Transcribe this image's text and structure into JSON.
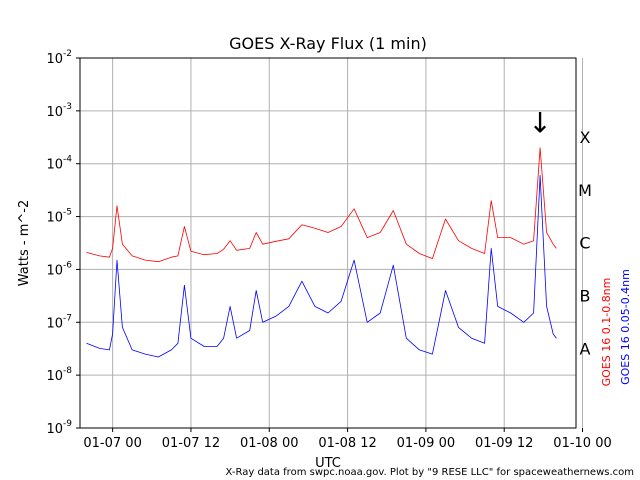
{
  "chart_data": {
    "type": "line",
    "title": "GOES X-Ray Flux (1 min)",
    "xlabel": "UTC",
    "ylabel": "Watts - m^-2",
    "yscale": "log",
    "ylim": [
      1e-09,
      0.01
    ],
    "xlim": [
      "2025-01-06T19:00",
      "2025-01-09T23:00"
    ],
    "grid": true,
    "x_ticks": [
      {
        "label": "01-07 00",
        "t": "2025-01-07T00:00"
      },
      {
        "label": "01-07 12",
        "t": "2025-01-07T12:00"
      },
      {
        "label": "01-08 00",
        "t": "2025-01-08T00:00"
      },
      {
        "label": "01-08 12",
        "t": "2025-01-08T12:00"
      },
      {
        "label": "01-09 00",
        "t": "2025-01-09T00:00"
      },
      {
        "label": "01-09 12",
        "t": "2025-01-09T12:00"
      },
      {
        "label": "01-10 00",
        "t": "2025-01-10T00:00"
      }
    ],
    "y_ticks": [
      {
        "mantissa": "10",
        "exp": "-2",
        "value": 0.01
      },
      {
        "mantissa": "10",
        "exp": "-3",
        "value": 0.001
      },
      {
        "mantissa": "10",
        "exp": "-4",
        "value": 0.0001
      },
      {
        "mantissa": "10",
        "exp": "-5",
        "value": 1e-05
      },
      {
        "mantissa": "10",
        "exp": "-6",
        "value": 1e-06
      },
      {
        "mantissa": "10",
        "exp": "-7",
        "value": 1e-07
      },
      {
        "mantissa": "10",
        "exp": "-8",
        "value": 1e-08
      },
      {
        "mantissa": "10",
        "exp": "-9",
        "value": 1e-09
      }
    ],
    "flare_classes": [
      {
        "label": "X",
        "value": 0.00032
      },
      {
        "label": "M",
        "value": 3.2e-05
      },
      {
        "label": "C",
        "value": 3.2e-06
      },
      {
        "label": "B",
        "value": 3.2e-07
      },
      {
        "label": "A",
        "value": 3.2e-08
      }
    ],
    "annotation": {
      "text": "↓",
      "t": "2025-01-09T17:30",
      "value": 0.0006
    },
    "series": [
      {
        "name": "GOES 16 0.1-0.8nm",
        "color": "#ff0000",
        "points": [
          [
            "2025-01-06T20:00",
            2.1e-06
          ],
          [
            "2025-01-06T22:00",
            1.8e-06
          ],
          [
            "2025-01-06T23:30",
            1.7e-06
          ],
          [
            "2025-01-07T00:00",
            2.5e-06
          ],
          [
            "2025-01-07T00:40",
            1.6e-05
          ],
          [
            "2025-01-07T01:30",
            3e-06
          ],
          [
            "2025-01-07T03:00",
            1.8e-06
          ],
          [
            "2025-01-07T05:00",
            1.5e-06
          ],
          [
            "2025-01-07T07:00",
            1.4e-06
          ],
          [
            "2025-01-07T09:00",
            1.7e-06
          ],
          [
            "2025-01-07T10:00",
            1.8e-06
          ],
          [
            "2025-01-07T11:00",
            6.5e-06
          ],
          [
            "2025-01-07T12:00",
            2.2e-06
          ],
          [
            "2025-01-07T14:00",
            1.9e-06
          ],
          [
            "2025-01-07T16:00",
            2e-06
          ],
          [
            "2025-01-07T17:00",
            2.4e-06
          ],
          [
            "2025-01-07T18:00",
            3.5e-06
          ],
          [
            "2025-01-07T19:00",
            2.3e-06
          ],
          [
            "2025-01-07T21:00",
            2.5e-06
          ],
          [
            "2025-01-07T22:00",
            5e-06
          ],
          [
            "2025-01-07T23:00",
            3e-06
          ],
          [
            "2025-01-08T01:00",
            3.4e-06
          ],
          [
            "2025-01-08T03:00",
            3.8e-06
          ],
          [
            "2025-01-08T05:00",
            7e-06
          ],
          [
            "2025-01-08T07:00",
            6e-06
          ],
          [
            "2025-01-08T09:00",
            5e-06
          ],
          [
            "2025-01-08T11:00",
            6.5e-06
          ],
          [
            "2025-01-08T13:00",
            1.4e-05
          ],
          [
            "2025-01-08T15:00",
            4e-06
          ],
          [
            "2025-01-08T17:00",
            5e-06
          ],
          [
            "2025-01-08T19:00",
            1.3e-05
          ],
          [
            "2025-01-08T21:00",
            3e-06
          ],
          [
            "2025-01-08T23:00",
            2e-06
          ],
          [
            "2025-01-09T01:00",
            1.6e-06
          ],
          [
            "2025-01-09T03:00",
            9e-06
          ],
          [
            "2025-01-09T05:00",
            3.5e-06
          ],
          [
            "2025-01-09T07:00",
            2.5e-06
          ],
          [
            "2025-01-09T09:00",
            2e-06
          ],
          [
            "2025-01-09T10:00",
            2e-05
          ],
          [
            "2025-01-09T11:00",
            4e-06
          ],
          [
            "2025-01-09T13:00",
            4e-06
          ],
          [
            "2025-01-09T15:00",
            3e-06
          ],
          [
            "2025-01-09T16:30",
            3.5e-06
          ],
          [
            "2025-01-09T17:30",
            0.0002
          ],
          [
            "2025-01-09T18:30",
            5e-06
          ],
          [
            "2025-01-09T19:30",
            3e-06
          ],
          [
            "2025-01-09T20:00",
            2.5e-06
          ]
        ]
      },
      {
        "name": "GOES 16 0.05-0.4nm",
        "color": "#0000ff",
        "points": [
          [
            "2025-01-06T20:00",
            4e-08
          ],
          [
            "2025-01-06T22:00",
            3.2e-08
          ],
          [
            "2025-01-06T23:30",
            3e-08
          ],
          [
            "2025-01-07T00:00",
            6e-08
          ],
          [
            "2025-01-07T00:40",
            1.5e-06
          ],
          [
            "2025-01-07T01:30",
            8e-08
          ],
          [
            "2025-01-07T03:00",
            3e-08
          ],
          [
            "2025-01-07T05:00",
            2.5e-08
          ],
          [
            "2025-01-07T07:00",
            2.2e-08
          ],
          [
            "2025-01-07T09:00",
            3e-08
          ],
          [
            "2025-01-07T10:00",
            4e-08
          ],
          [
            "2025-01-07T11:00",
            5e-07
          ],
          [
            "2025-01-07T12:00",
            5e-08
          ],
          [
            "2025-01-07T14:00",
            3.5e-08
          ],
          [
            "2025-01-07T16:00",
            3.5e-08
          ],
          [
            "2025-01-07T17:00",
            5e-08
          ],
          [
            "2025-01-07T18:00",
            2e-07
          ],
          [
            "2025-01-07T19:00",
            5e-08
          ],
          [
            "2025-01-07T21:00",
            7e-08
          ],
          [
            "2025-01-07T22:00",
            4e-07
          ],
          [
            "2025-01-07T23:00",
            1e-07
          ],
          [
            "2025-01-08T01:00",
            1.3e-07
          ],
          [
            "2025-01-08T03:00",
            2e-07
          ],
          [
            "2025-01-08T05:00",
            6e-07
          ],
          [
            "2025-01-08T07:00",
            2e-07
          ],
          [
            "2025-01-08T09:00",
            1.5e-07
          ],
          [
            "2025-01-08T11:00",
            2.5e-07
          ],
          [
            "2025-01-08T13:00",
            1.5e-06
          ],
          [
            "2025-01-08T15:00",
            1e-07
          ],
          [
            "2025-01-08T17:00",
            1.5e-07
          ],
          [
            "2025-01-08T19:00",
            1.2e-06
          ],
          [
            "2025-01-08T21:00",
            5e-08
          ],
          [
            "2025-01-08T23:00",
            3e-08
          ],
          [
            "2025-01-09T01:00",
            2.5e-08
          ],
          [
            "2025-01-09T03:00",
            4e-07
          ],
          [
            "2025-01-09T05:00",
            8e-08
          ],
          [
            "2025-01-09T07:00",
            5e-08
          ],
          [
            "2025-01-09T09:00",
            4e-08
          ],
          [
            "2025-01-09T10:00",
            2.5e-06
          ],
          [
            "2025-01-09T11:00",
            2e-07
          ],
          [
            "2025-01-09T13:00",
            1.5e-07
          ],
          [
            "2025-01-09T15:00",
            1e-07
          ],
          [
            "2025-01-09T16:30",
            1.5e-07
          ],
          [
            "2025-01-09T17:30",
            6e-05
          ],
          [
            "2025-01-09T18:30",
            2e-07
          ],
          [
            "2025-01-09T19:30",
            6e-08
          ],
          [
            "2025-01-09T20:00",
            5e-08
          ]
        ]
      }
    ],
    "credit": "X-Ray data from swpc.noaa.gov. Plot by \"9 RESE LLC\" for spaceweathernews.com"
  }
}
